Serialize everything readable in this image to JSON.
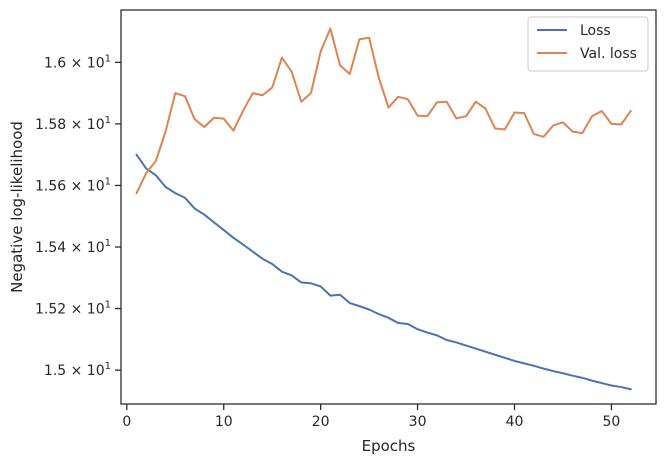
{
  "chart_data": {
    "type": "line",
    "xlabel": "Epochs",
    "ylabel": "Negative log-likelihood",
    "xlim": [
      -0.6,
      54.6
    ],
    "ylim": [
      14.89,
      16.17
    ],
    "x_ticks": [
      0,
      10,
      20,
      30,
      40,
      50
    ],
    "y_ticks": [
      {
        "value": 15.0,
        "mantissa": "1.5",
        "exponent": "1"
      },
      {
        "value": 15.2,
        "mantissa": "1.52",
        "exponent": "1"
      },
      {
        "value": 15.4,
        "mantissa": "1.54",
        "exponent": "1"
      },
      {
        "value": 15.6,
        "mantissa": "1.56",
        "exponent": "1"
      },
      {
        "value": 15.8,
        "mantissa": "1.58",
        "exponent": "1"
      },
      {
        "value": 16.0,
        "mantissa": "1.6",
        "exponent": "1"
      }
    ],
    "grid": false,
    "legend_position": "top-right",
    "x": [
      1,
      2,
      3,
      4,
      5,
      6,
      7,
      8,
      9,
      10,
      11,
      12,
      13,
      14,
      15,
      16,
      17,
      18,
      19,
      20,
      21,
      22,
      23,
      24,
      25,
      26,
      27,
      28,
      29,
      30,
      31,
      32,
      33,
      34,
      35,
      36,
      37,
      38,
      39,
      40,
      41,
      42,
      43,
      44,
      45,
      46,
      47,
      48,
      49,
      50,
      51,
      52
    ],
    "series": [
      {
        "name": "Loss",
        "color": "#4c72b0",
        "values": [
          15.7,
          15.655,
          15.633,
          15.595,
          15.575,
          15.56,
          15.525,
          15.505,
          15.48,
          15.455,
          15.43,
          15.408,
          15.385,
          15.362,
          15.345,
          15.32,
          15.308,
          15.285,
          15.282,
          15.272,
          15.242,
          15.245,
          15.218,
          15.208,
          15.197,
          15.182,
          15.17,
          15.153,
          15.15,
          15.133,
          15.122,
          15.113,
          15.098,
          15.09,
          15.08,
          15.07,
          15.06,
          15.05,
          15.04,
          15.03,
          15.022,
          15.014,
          15.005,
          14.997,
          14.99,
          14.982,
          14.975,
          14.966,
          14.958,
          14.95,
          14.945,
          14.938
        ]
      },
      {
        "name": "Val. loss",
        "color": "#dd8452",
        "values": [
          15.575,
          15.64,
          15.68,
          15.775,
          15.9,
          15.89,
          15.815,
          15.79,
          15.82,
          15.817,
          15.778,
          15.843,
          15.9,
          15.893,
          15.918,
          16.015,
          15.97,
          15.872,
          15.9,
          16.035,
          16.11,
          15.99,
          15.962,
          16.075,
          16.08,
          15.95,
          15.853,
          15.888,
          15.88,
          15.827,
          15.825,
          15.87,
          15.872,
          15.818,
          15.825,
          15.872,
          15.85,
          15.785,
          15.782,
          15.837,
          15.835,
          15.767,
          15.758,
          15.795,
          15.805,
          15.775,
          15.77,
          15.825,
          15.842,
          15.8,
          15.798,
          15.842
        ]
      }
    ]
  }
}
